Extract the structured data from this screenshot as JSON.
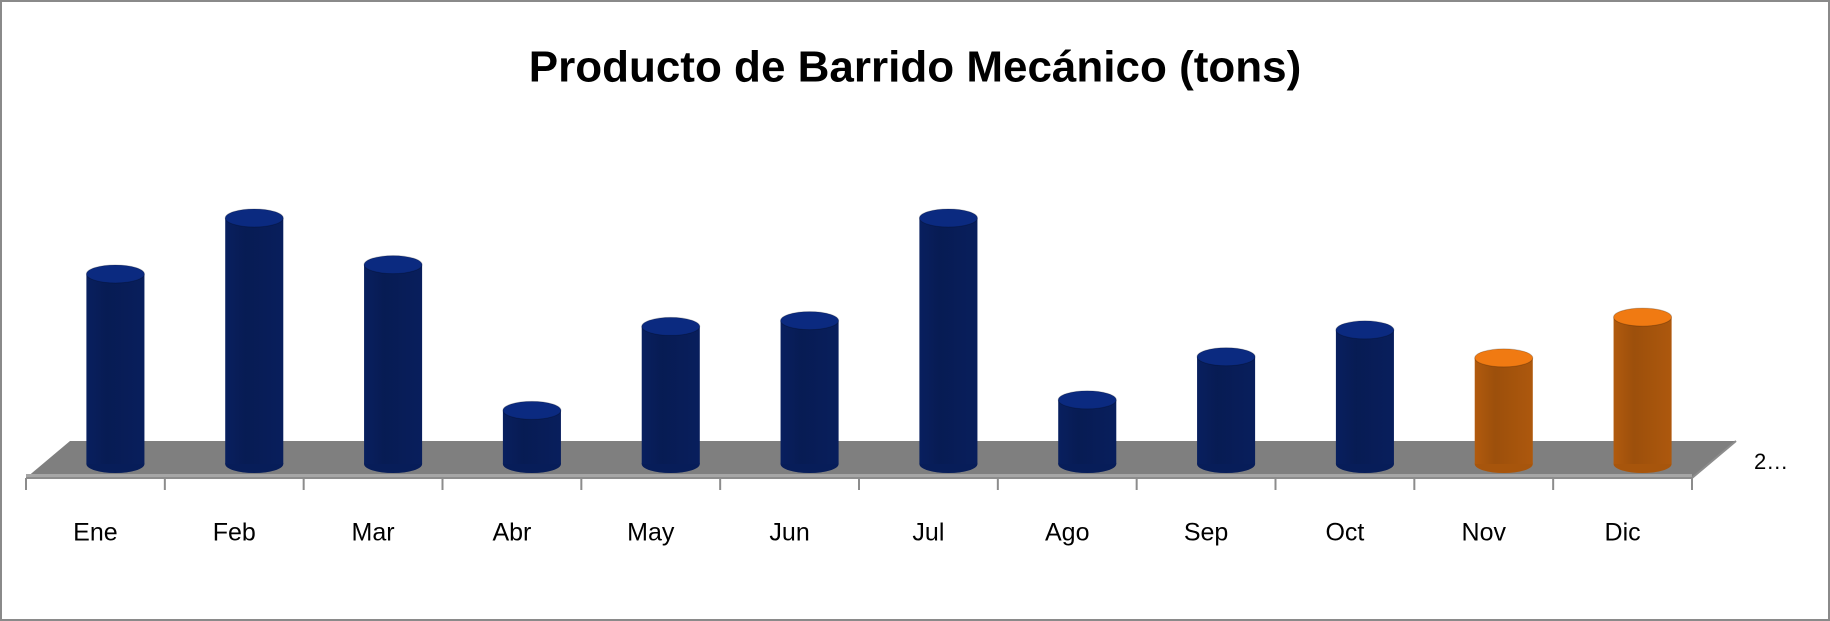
{
  "chart_data": {
    "type": "bar3d",
    "title": "Producto de Barrido Mecánico (tons)",
    "categories": [
      "Ene",
      "Feb",
      "Mar",
      "Abr",
      "May",
      "Jun",
      "Jul",
      "Ago",
      "Sep",
      "Oct",
      "Nov",
      "Dic"
    ],
    "series": [
      {
        "name": "2…",
        "values": [
          163,
          211,
          171,
          46,
          118,
          123,
          211,
          55,
          92,
          115,
          91,
          126
        ],
        "colors": [
          "#0b2a80",
          "#0b2a80",
          "#0b2a80",
          "#0b2a80",
          "#0b2a80",
          "#0b2a80",
          "#0b2a80",
          "#0b2a80",
          "#0b2a80",
          "#0b2a80",
          "#f07a12",
          "#f07a12"
        ]
      }
    ]
  }
}
